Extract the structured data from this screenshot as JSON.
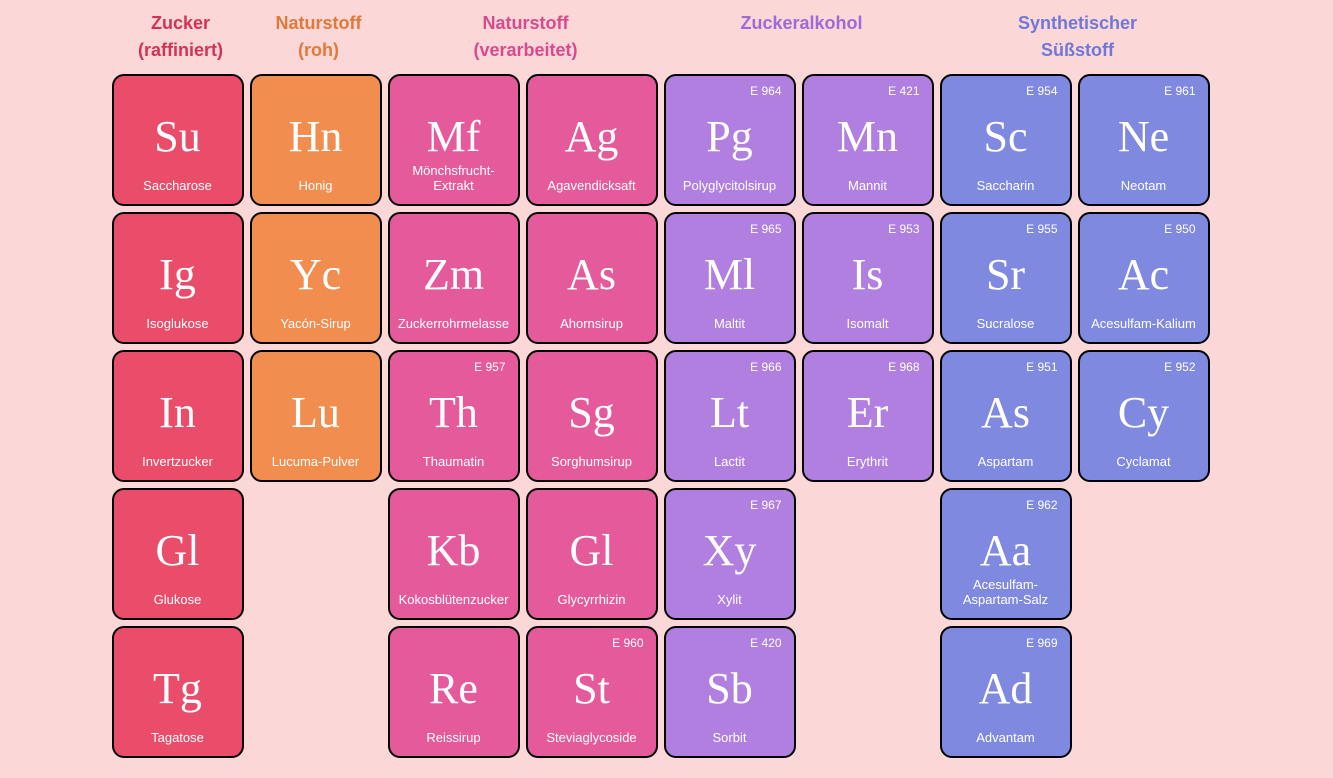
{
  "colors": {
    "background": "#fbd7d7",
    "categories": {
      "refined": {
        "bg": "#e94d6a",
        "header": "#d23355"
      },
      "raw": {
        "bg": "#f08d4f",
        "header": "#e07a3a"
      },
      "processed": {
        "bg": "#e55a9b",
        "header": "#d84a8d"
      },
      "alcohol": {
        "bg": "#b07fe0",
        "header": "#9f6ad6"
      },
      "synthetic": {
        "bg": "#8089e0",
        "header": "#6f78d8"
      }
    }
  },
  "layout": {
    "cols": 8,
    "rows": 5,
    "tile_size": 132,
    "gap": 6,
    "border_radius": 12,
    "border": "2px solid #000",
    "symbol_fontsize": 44,
    "name_fontsize": 13,
    "eno_fontsize": 12,
    "header_fontsize": 18
  },
  "headers": [
    {
      "cat": "refined",
      "lines": [
        "Zucker",
        "(raffiniert)"
      ]
    },
    {
      "cat": "raw",
      "lines": [
        "Naturstoff",
        "(roh)"
      ]
    },
    {
      "cat": "processed",
      "lines": [
        "Naturstoff",
        "(verarbeitet)"
      ]
    },
    {
      "cat": "alcohol",
      "lines": [
        "Zuckeralkohol",
        ""
      ]
    },
    {
      "cat": "synthetic",
      "lines": [
        "Synthetischer",
        "Süßstoff"
      ]
    }
  ],
  "tiles": [
    {
      "r": 1,
      "c": 1,
      "cat": "refined",
      "sym": "Su",
      "name": "Saccharose"
    },
    {
      "r": 1,
      "c": 2,
      "cat": "raw",
      "sym": "Hn",
      "name": "Honig"
    },
    {
      "r": 1,
      "c": 3,
      "cat": "processed",
      "sym": "Mf",
      "name": "Mönchsfrucht-\nExtrakt"
    },
    {
      "r": 1,
      "c": 4,
      "cat": "processed",
      "sym": "Ag",
      "name": "Agavendicksaft"
    },
    {
      "r": 1,
      "c": 5,
      "cat": "alcohol",
      "sym": "Pg",
      "name": "Polyglycitolsirup",
      "eno": "E 964"
    },
    {
      "r": 1,
      "c": 6,
      "cat": "alcohol",
      "sym": "Mn",
      "name": "Mannit",
      "eno": "E 421"
    },
    {
      "r": 1,
      "c": 7,
      "cat": "synthetic",
      "sym": "Sc",
      "name": "Saccharin",
      "eno": "E 954"
    },
    {
      "r": 1,
      "c": 8,
      "cat": "synthetic",
      "sym": "Ne",
      "name": "Neotam",
      "eno": "E 961"
    },
    {
      "r": 2,
      "c": 1,
      "cat": "refined",
      "sym": "Ig",
      "name": "Isoglukose"
    },
    {
      "r": 2,
      "c": 2,
      "cat": "raw",
      "sym": "Yc",
      "name": "Yacón-Sirup"
    },
    {
      "r": 2,
      "c": 3,
      "cat": "processed",
      "sym": "Zm",
      "name": "Zuckerrohrmelasse"
    },
    {
      "r": 2,
      "c": 4,
      "cat": "processed",
      "sym": "As",
      "name": "Ahornsirup"
    },
    {
      "r": 2,
      "c": 5,
      "cat": "alcohol",
      "sym": "Ml",
      "name": "Maltit",
      "eno": "E 965"
    },
    {
      "r": 2,
      "c": 6,
      "cat": "alcohol",
      "sym": "Is",
      "name": "Isomalt",
      "eno": "E 953"
    },
    {
      "r": 2,
      "c": 7,
      "cat": "synthetic",
      "sym": "Sr",
      "name": "Sucralose",
      "eno": "E 955"
    },
    {
      "r": 2,
      "c": 8,
      "cat": "synthetic",
      "sym": "Ac",
      "name": "Acesulfam-Kalium",
      "eno": "E 950"
    },
    {
      "r": 3,
      "c": 1,
      "cat": "refined",
      "sym": "In",
      "name": "Invertzucker"
    },
    {
      "r": 3,
      "c": 2,
      "cat": "raw",
      "sym": "Lu",
      "name": "Lucuma-Pulver"
    },
    {
      "r": 3,
      "c": 3,
      "cat": "processed",
      "sym": "Th",
      "name": "Thaumatin",
      "eno": "E 957"
    },
    {
      "r": 3,
      "c": 4,
      "cat": "processed",
      "sym": "Sg",
      "name": "Sorghumsirup"
    },
    {
      "r": 3,
      "c": 5,
      "cat": "alcohol",
      "sym": "Lt",
      "name": "Lactit",
      "eno": "E 966"
    },
    {
      "r": 3,
      "c": 6,
      "cat": "alcohol",
      "sym": "Er",
      "name": "Erythrit",
      "eno": "E 968"
    },
    {
      "r": 3,
      "c": 7,
      "cat": "synthetic",
      "sym": "As",
      "name": "Aspartam",
      "eno": "E 951"
    },
    {
      "r": 3,
      "c": 8,
      "cat": "synthetic",
      "sym": "Cy",
      "name": "Cyclamat",
      "eno": "E 952"
    },
    {
      "r": 4,
      "c": 1,
      "cat": "refined",
      "sym": "Gl",
      "name": "Glukose"
    },
    {
      "r": 4,
      "c": 3,
      "cat": "processed",
      "sym": "Kb",
      "name": "Kokosblütenzucker"
    },
    {
      "r": 4,
      "c": 4,
      "cat": "processed",
      "sym": "Gl",
      "name": "Glycyrrhizin"
    },
    {
      "r": 4,
      "c": 5,
      "cat": "alcohol",
      "sym": "Xy",
      "name": "Xylit",
      "eno": "E 967"
    },
    {
      "r": 4,
      "c": 7,
      "cat": "synthetic",
      "sym": "Aa",
      "name": "Acesulfam-\nAspartam-Salz",
      "eno": "E 962"
    },
    {
      "r": 5,
      "c": 1,
      "cat": "refined",
      "sym": "Tg",
      "name": "Tagatose"
    },
    {
      "r": 5,
      "c": 3,
      "cat": "processed",
      "sym": "Re",
      "name": "Reissirup"
    },
    {
      "r": 5,
      "c": 4,
      "cat": "processed",
      "sym": "St",
      "name": "Steviaglycoside",
      "eno": "E 960"
    },
    {
      "r": 5,
      "c": 5,
      "cat": "alcohol",
      "sym": "Sb",
      "name": "Sorbit",
      "eno": "E 420"
    },
    {
      "r": 5,
      "c": 7,
      "cat": "synthetic",
      "sym": "Ad",
      "name": "Advantam",
      "eno": "E 969"
    }
  ]
}
